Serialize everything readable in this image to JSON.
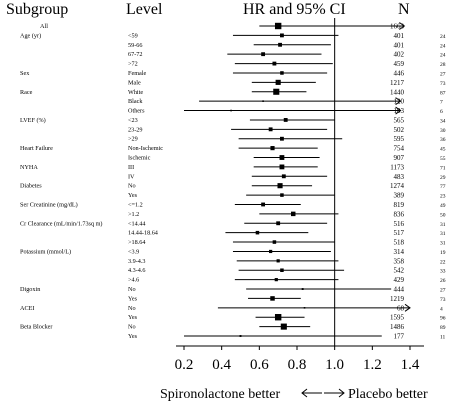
{
  "header": {
    "subgroup": "Subgroup",
    "level": "Level",
    "hr": "HR and 95% CI",
    "n": "N"
  },
  "footer": {
    "left": "Spironolactone better",
    "right": "Placebo better"
  },
  "chart_data": {
    "type": "forest",
    "xlim": [
      0.2,
      1.4
    ],
    "reference_line": 1.0,
    "x_ticks": [
      "0.2",
      "0.4",
      "0.6",
      "0.8",
      "1.0",
      "1.2",
      "1.4"
    ],
    "rows": [
      {
        "group": "All",
        "level": "",
        "hr": 0.7,
        "lo": 0.6,
        "hi": 1.37,
        "n": "1663",
        "events": "",
        "size": 2.0
      },
      {
        "group": "Age (yr)",
        "level": "<59",
        "hr": 0.72,
        "lo": 0.46,
        "hi": 1.02,
        "n": "401",
        "events": "24",
        "size": 1.2
      },
      {
        "group": "",
        "level": "59-66",
        "hr": 0.71,
        "lo": 0.57,
        "hi": 0.98,
        "n": "401",
        "events": "24",
        "size": 1.2
      },
      {
        "group": "",
        "level": "67-72",
        "hr": 0.62,
        "lo": 0.43,
        "hi": 0.93,
        "n": "402",
        "events": "24",
        "size": 1.2
      },
      {
        "group": "",
        "level": ">72",
        "hr": 0.68,
        "lo": 0.47,
        "hi": 0.99,
        "n": "459",
        "events": "28",
        "size": 1.2
      },
      {
        "group": "Sex",
        "level": "Female",
        "hr": 0.72,
        "lo": 0.46,
        "hi": 0.96,
        "n": "446",
        "events": "27",
        "size": 1.1
      },
      {
        "group": "",
        "level": "Male",
        "hr": 0.7,
        "lo": 0.56,
        "hi": 0.9,
        "n": "1217",
        "events": "73",
        "size": 1.6
      },
      {
        "group": "Race",
        "level": "White",
        "hr": 0.69,
        "lo": 0.56,
        "hi": 0.85,
        "n": "1440",
        "events": "87",
        "size": 1.9
      },
      {
        "group": "",
        "level": "Black",
        "hr": 0.62,
        "lo": 0.28,
        "hi": 1.35,
        "n": "120",
        "events": "7",
        "size": 0.5
      },
      {
        "group": "",
        "level": "Others",
        "hr": 0.45,
        "lo": 0.12,
        "hi": 1.35,
        "n": "103",
        "events": "6",
        "size": 0.5
      },
      {
        "group": "LVEF (%)",
        "level": "<23",
        "hr": 0.74,
        "lo": 0.55,
        "hi": 1.0,
        "n": "565",
        "events": "34",
        "size": 1.2
      },
      {
        "group": "",
        "level": "23-29",
        "hr": 0.66,
        "lo": 0.45,
        "hi": 0.96,
        "n": "502",
        "events": "30",
        "size": 1.2
      },
      {
        "group": "",
        "level": ">29",
        "hr": 0.72,
        "lo": 0.49,
        "hi": 1.04,
        "n": "595",
        "events": "36",
        "size": 1.2
      },
      {
        "group": "Heart Failure",
        "level": "Non-Ischemic",
        "hr": 0.67,
        "lo": 0.49,
        "hi": 0.91,
        "n": "754",
        "events": "45",
        "size": 1.3
      },
      {
        "group": "",
        "level": "Ischemic",
        "hr": 0.72,
        "lo": 0.57,
        "hi": 0.92,
        "n": "907",
        "events": "55",
        "size": 1.5
      },
      {
        "group": "NYHA",
        "level": "III",
        "hr": 0.72,
        "lo": 0.57,
        "hi": 0.91,
        "n": "1173",
        "events": "71",
        "size": 1.5
      },
      {
        "group": "",
        "level": "IV",
        "hr": 0.73,
        "lo": 0.56,
        "hi": 0.96,
        "n": "483",
        "events": "29",
        "size": 1.2
      },
      {
        "group": "Diabetes",
        "level": "No",
        "hr": 0.71,
        "lo": 0.56,
        "hi": 0.88,
        "n": "1274",
        "events": "77",
        "size": 1.6
      },
      {
        "group": "",
        "level": "Yes",
        "hr": 0.72,
        "lo": 0.53,
        "hi": 1.0,
        "n": "389",
        "events": "23",
        "size": 1.1
      },
      {
        "group": "Ser Creatinine (mg/dL)",
        "level": "<=1.2",
        "hr": 0.62,
        "lo": 0.47,
        "hi": 0.82,
        "n": "819",
        "events": "49",
        "size": 1.2
      },
      {
        "group": "",
        "level": ">1.2",
        "hr": 0.78,
        "lo": 0.6,
        "hi": 1.02,
        "n": "836",
        "events": "50",
        "size": 1.4
      },
      {
        "group": "Cr Clearance (mL/min/1.73sq m)",
        "level": "<14.44",
        "hr": 0.7,
        "lo": 0.52,
        "hi": 0.96,
        "n": "516",
        "events": "31",
        "size": 1.2
      },
      {
        "group": "",
        "level": "14.44-18.64",
        "hr": 0.59,
        "lo": 0.42,
        "hi": 0.86,
        "n": "517",
        "events": "31",
        "size": 1.1
      },
      {
        "group": "",
        "level": ">18.64",
        "hr": 0.68,
        "lo": 0.46,
        "hi": 1.0,
        "n": "518",
        "events": "31",
        "size": 1.1
      },
      {
        "group": "Potassium (mmol/L)",
        "level": "<3.9",
        "hr": 0.66,
        "lo": 0.46,
        "hi": 0.98,
        "n": "314",
        "events": "19",
        "size": 1.0
      },
      {
        "group": "",
        "level": "3.9-4.3",
        "hr": 0.7,
        "lo": 0.48,
        "hi": 1.02,
        "n": "358",
        "events": "22",
        "size": 1.0
      },
      {
        "group": "",
        "level": "4.3-4.6",
        "hr": 0.72,
        "lo": 0.49,
        "hi": 1.05,
        "n": "542",
        "events": "33",
        "size": 1.1
      },
      {
        "group": "",
        "level": ">4.6",
        "hr": 0.69,
        "lo": 0.47,
        "hi": 1.02,
        "n": "429",
        "events": "26",
        "size": 1.0
      },
      {
        "group": "Digoxin",
        "level": "No",
        "hr": 0.83,
        "lo": 0.53,
        "hi": 1.3,
        "n": "444",
        "events": "27",
        "size": 0.6
      },
      {
        "group": "",
        "level": "Yes",
        "hr": 0.67,
        "lo": 0.54,
        "hi": 0.82,
        "n": "1219",
        "events": "73",
        "size": 1.4
      },
      {
        "group": "ACEI",
        "level": "No",
        "hr": 0.84,
        "lo": 0.38,
        "hi": 1.4,
        "n": "68",
        "events": "4",
        "size": 0.5
      },
      {
        "group": "",
        "level": "Yes",
        "hr": 0.7,
        "lo": 0.58,
        "hi": 0.84,
        "n": "1595",
        "events": "96",
        "size": 2.0
      },
      {
        "group": "Beta Blocker",
        "level": "No",
        "hr": 0.73,
        "lo": 0.6,
        "hi": 0.87,
        "n": "1486",
        "events": "89",
        "size": 1.9
      },
      {
        "group": "",
        "level": "Yes",
        "hr": 0.5,
        "lo": 0.2,
        "hi": 1.25,
        "n": "177",
        "events": "11",
        "size": 0.6
      }
    ]
  }
}
